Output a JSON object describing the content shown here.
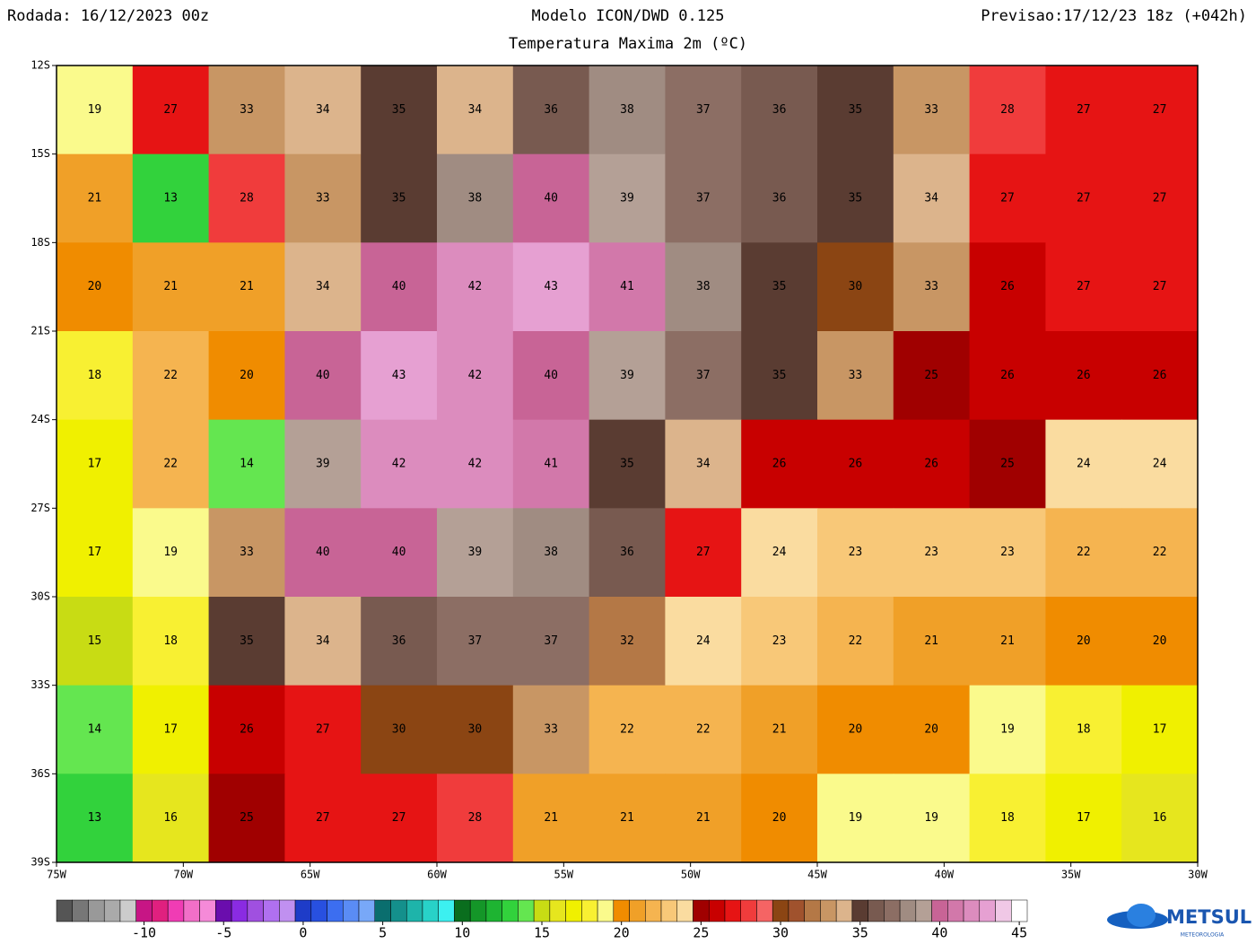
{
  "header": {
    "run": "Rodada: 16/12/2023 00z",
    "model": "Modelo ICON/DWD 0.125",
    "field": "Temperatura Maxima 2m (ºC)",
    "forecast": "Previsao:17/12/23 18z (+042h)"
  },
  "map": {
    "lon_range": [
      -75,
      -30
    ],
    "lat_range": [
      -12,
      -39
    ],
    "lon_ticks": [
      {
        "value": -75,
        "label": "75W"
      },
      {
        "value": -70,
        "label": "70W"
      },
      {
        "value": -65,
        "label": "65W"
      },
      {
        "value": -60,
        "label": "60W"
      },
      {
        "value": -55,
        "label": "55W"
      },
      {
        "value": -50,
        "label": "50W"
      },
      {
        "value": -45,
        "label": "45W"
      },
      {
        "value": -40,
        "label": "40W"
      },
      {
        "value": -35,
        "label": "35W"
      },
      {
        "value": -30,
        "label": "30W"
      }
    ],
    "lat_ticks": [
      {
        "value": -12,
        "label": "12S"
      },
      {
        "value": -15,
        "label": "15S"
      },
      {
        "value": -18,
        "label": "18S"
      },
      {
        "value": -21,
        "label": "21S"
      },
      {
        "value": -24,
        "label": "24S"
      },
      {
        "value": -27,
        "label": "27S"
      },
      {
        "value": -30,
        "label": "30S"
      },
      {
        "value": -33,
        "label": "33S"
      },
      {
        "value": -36,
        "label": "36S"
      },
      {
        "value": -39,
        "label": "39S"
      }
    ],
    "temperature_grid": [
      [
        19,
        27,
        33,
        34,
        35,
        34,
        36,
        38,
        37,
        36,
        35,
        33,
        28,
        27,
        27
      ],
      [
        21,
        13,
        28,
        33,
        35,
        38,
        40,
        39,
        37,
        36,
        35,
        34,
        27,
        27,
        27
      ],
      [
        20,
        21,
        21,
        34,
        40,
        42,
        43,
        41,
        38,
        35,
        30,
        33,
        26,
        27,
        27
      ],
      [
        18,
        22,
        20,
        40,
        43,
        42,
        40,
        39,
        37,
        35,
        33,
        25,
        26,
        26,
        26
      ],
      [
        17,
        22,
        14,
        39,
        42,
        42,
        41,
        35,
        34,
        26,
        26,
        26,
        25,
        24,
        24
      ],
      [
        17,
        19,
        33,
        40,
        40,
        39,
        38,
        36,
        27,
        24,
        23,
        23,
        23,
        22,
        22
      ],
      [
        15,
        18,
        35,
        34,
        36,
        37,
        37,
        32,
        24,
        23,
        22,
        21,
        21,
        20,
        20
      ],
      [
        14,
        17,
        26,
        27,
        30,
        30,
        33,
        22,
        22,
        21,
        20,
        20,
        19,
        18,
        17
      ],
      [
        13,
        16,
        25,
        27,
        27,
        28,
        21,
        21,
        21,
        20,
        19,
        19,
        18,
        17,
        16
      ]
    ]
  },
  "colorbar": {
    "lim": [
      -15.5,
      45.5
    ],
    "ticks": [
      -10,
      -5,
      0,
      5,
      10,
      15,
      20,
      25,
      30,
      35,
      40,
      45
    ],
    "colors": [
      "#555555",
      "#777777",
      "#999999",
      "#aaaaaa",
      "#cccccc",
      "#c71585",
      "#e0207f",
      "#f03cb4",
      "#f26fc8",
      "#f58ad8",
      "#6a0dad",
      "#8a2be2",
      "#a050e0",
      "#b070f0",
      "#c090f0",
      "#1e3cc8",
      "#2850e0",
      "#3c6ef0",
      "#5a8cf5",
      "#78a8f8",
      "#0a6e6e",
      "#14908c",
      "#1eb4aa",
      "#28d2c8",
      "#3cf0f0",
      "#0a6e1e",
      "#149628",
      "#1eb432",
      "#32d23c",
      "#64e650",
      "#c8dc14",
      "#e6e61e",
      "#f0f000",
      "#f8f032",
      "#fafa8c",
      "#f08c00",
      "#f0a028",
      "#f5b450",
      "#f8c878",
      "#fadca0",
      "#a00000",
      "#c80000",
      "#e61414",
      "#f03c3c",
      "#f56464",
      "#8b4513",
      "#a0522d",
      "#b47846",
      "#c89664",
      "#dcb48c",
      "#5a3c32",
      "#785a50",
      "#8c6e64",
      "#a08c82",
      "#b4a096",
      "#c86496",
      "#d278aa",
      "#dc8cbe",
      "#e6a0d2",
      "#f0c8e6",
      "#ffffff"
    ]
  },
  "logo": {
    "name": "METSUL",
    "tagline": "METEOROLOGIA"
  }
}
